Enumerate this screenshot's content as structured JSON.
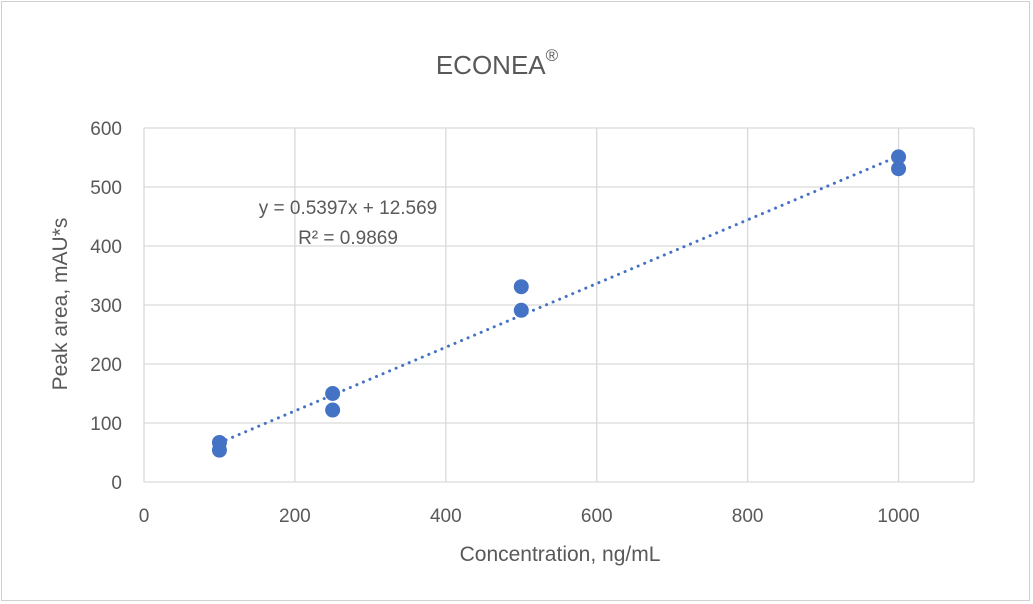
{
  "chart_data": {
    "type": "scatter",
    "title": "ECONEA",
    "title_superscript": "®",
    "xlabel": "Concentration, ng/mL",
    "ylabel": "Peak area, mAU*s",
    "xlim": [
      0,
      1100
    ],
    "ylim": [
      0,
      600
    ],
    "x_ticks": [
      0,
      200,
      400,
      600,
      800,
      1000
    ],
    "y_ticks": [
      0,
      100,
      200,
      300,
      400,
      500,
      600
    ],
    "grid": true,
    "series": [
      {
        "points": [
          {
            "x": 100,
            "y": 67
          },
          {
            "x": 100,
            "y": 54
          },
          {
            "x": 250,
            "y": 150
          },
          {
            "x": 250,
            "y": 122
          },
          {
            "x": 500,
            "y": 331
          },
          {
            "x": 500,
            "y": 291
          },
          {
            "x": 1000,
            "y": 551
          },
          {
            "x": 1000,
            "y": 531
          }
        ],
        "color": "#4472C4"
      }
    ],
    "trendline": {
      "type": "linear",
      "slope": 0.5397,
      "intercept": 12.569,
      "x_range": [
        100,
        1000
      ],
      "color": "#4472C4",
      "style": "dotted",
      "equation_label": "y = 0.5397x + 12.569",
      "r2_label": "R² = 0.9869"
    },
    "colors": {
      "grid": "#d9d9d9",
      "text": "#595959",
      "marker": "#4472C4"
    }
  }
}
